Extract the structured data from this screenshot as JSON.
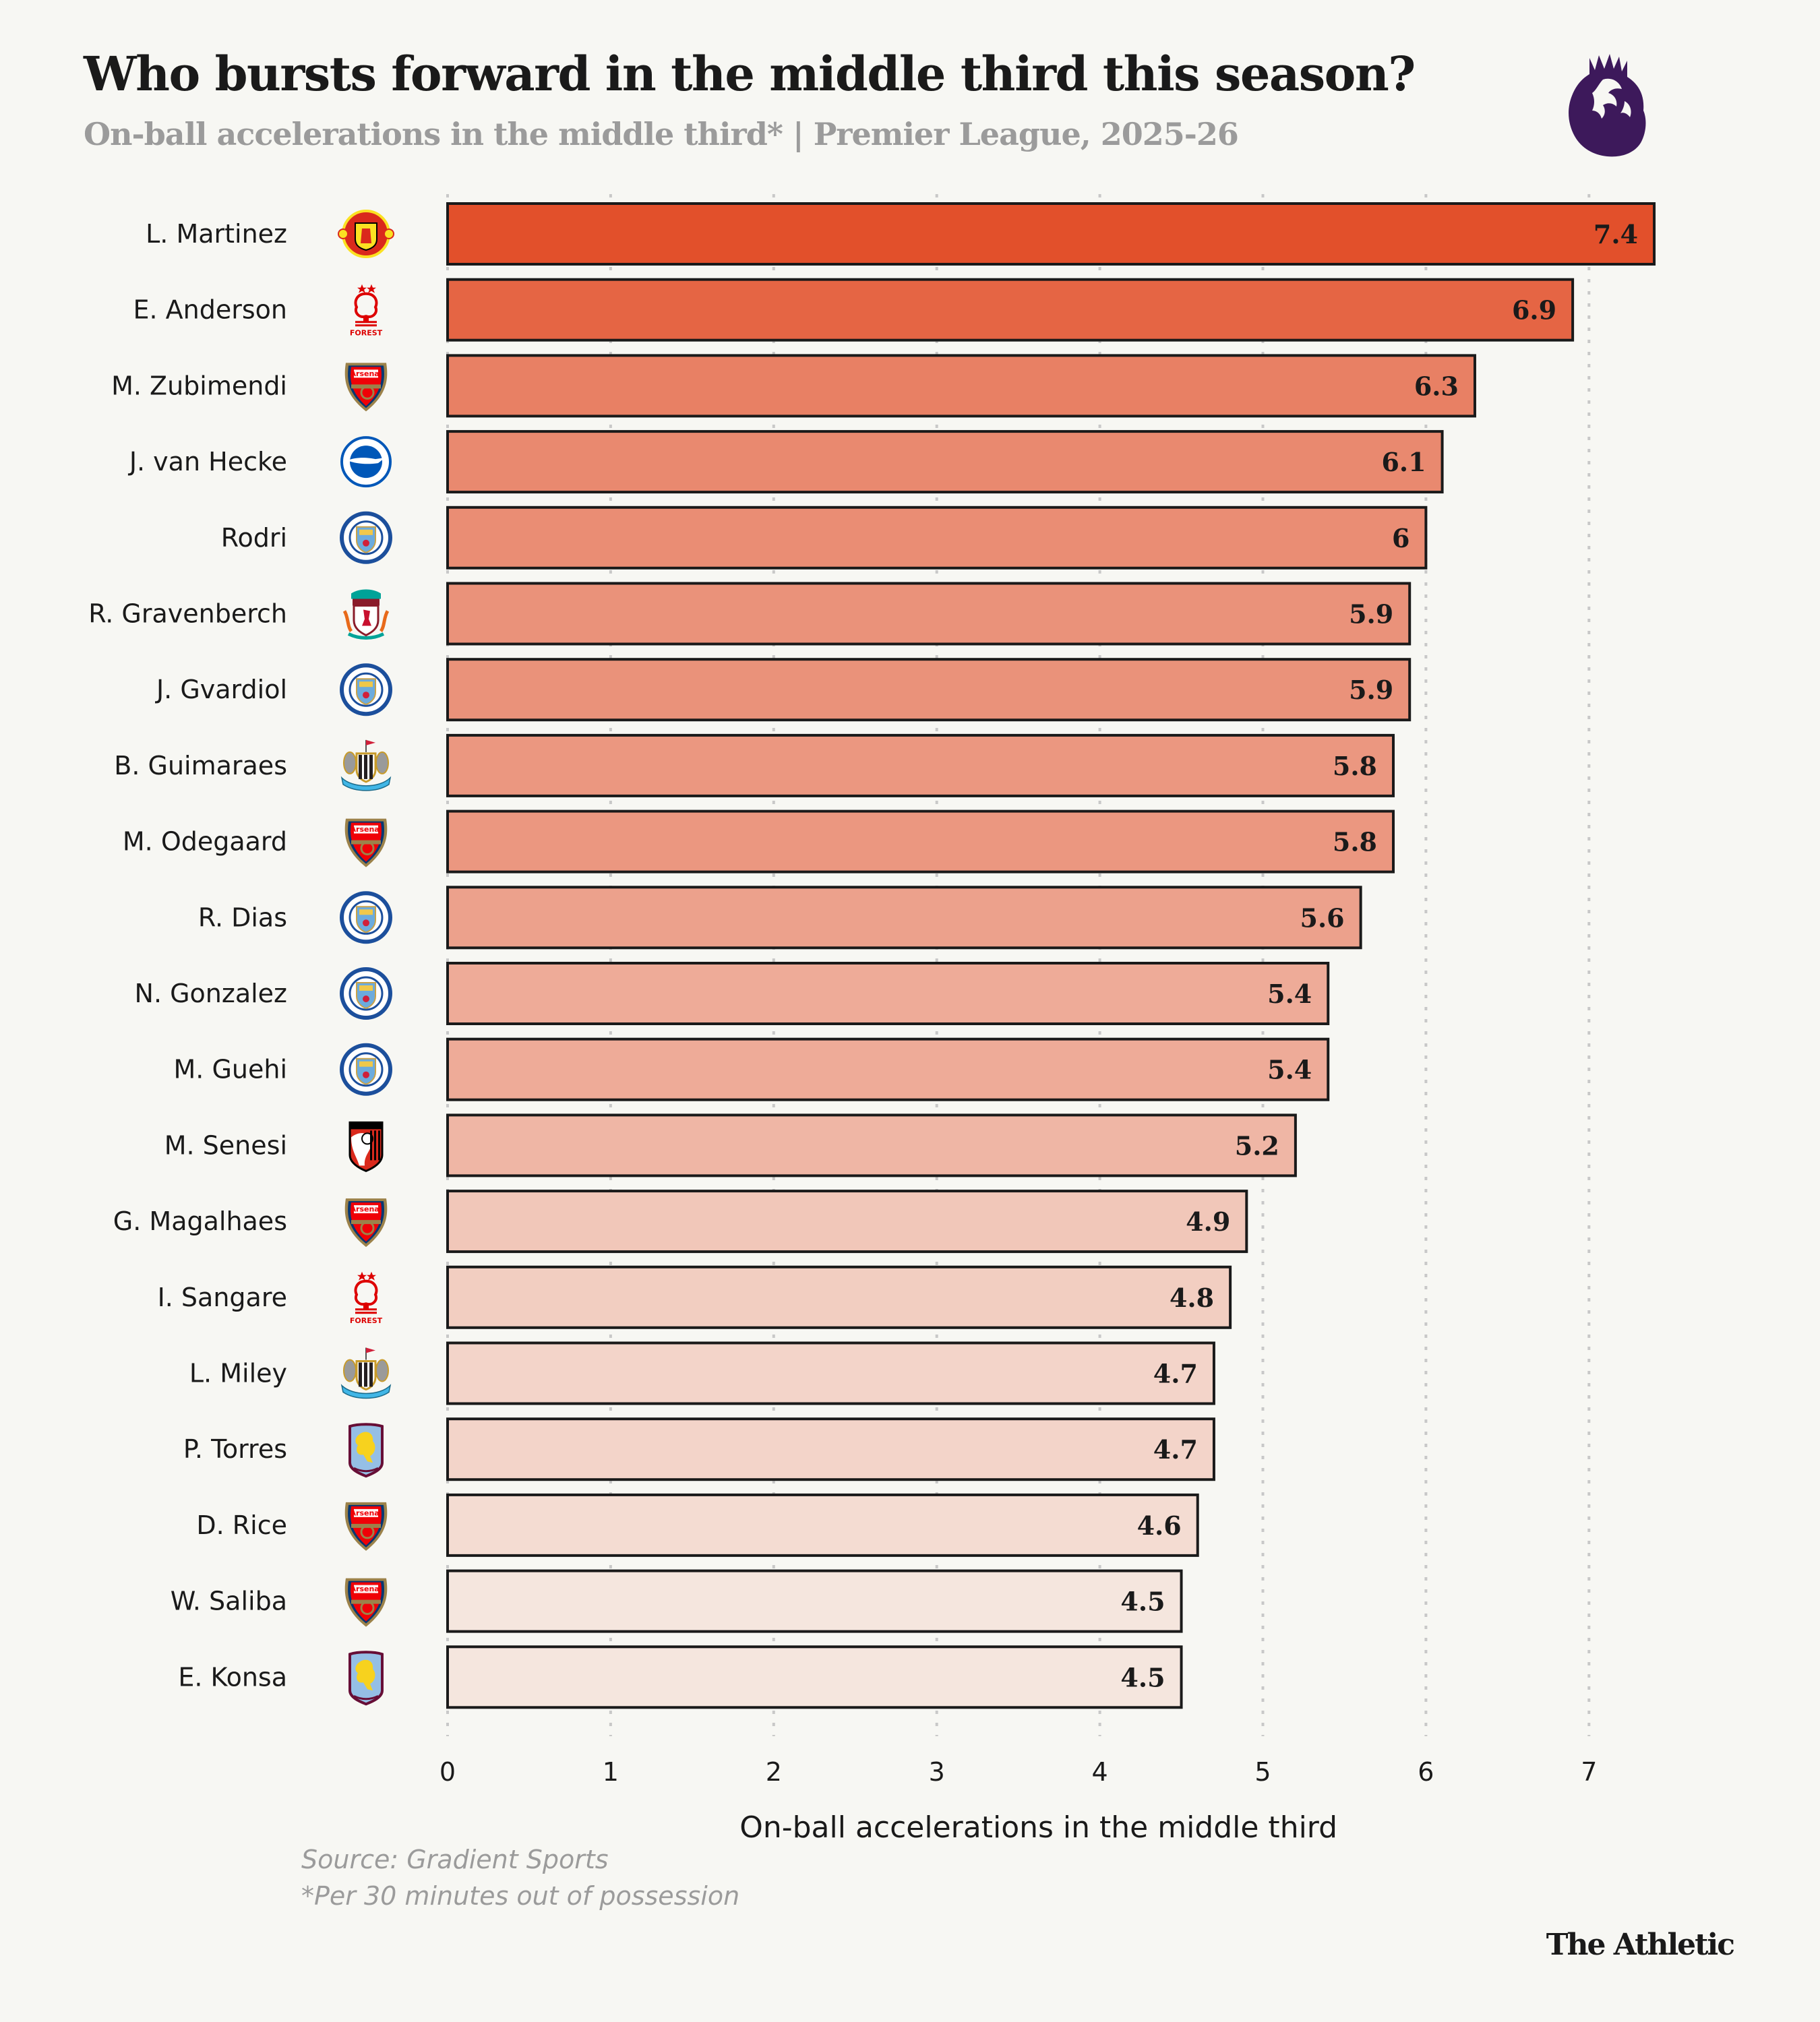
{
  "header": {
    "title": "Who bursts forward in the middle third this season?",
    "subtitle": "On-ball accelerations in the middle third* | Premier League, 2025-26",
    "league_logo": "premier-league-lion-icon"
  },
  "footer": {
    "source": "Source: Gradient Sports",
    "footnote": "*Per 30 minutes out of possession",
    "brand": "The Athletic"
  },
  "colors": {
    "background": "#f7f7f3",
    "bar_max": "#e2502b",
    "bar_min": "#f5e6de",
    "bar_outline": "#1a1a1a",
    "gridline": "#c8c8c8",
    "league_purple": "#3d195b"
  },
  "chart_data": {
    "type": "bar",
    "orientation": "horizontal",
    "title": "Who bursts forward in the middle third this season?",
    "subtitle": "On-ball accelerations in the middle third* | Premier League, 2025-26",
    "xlabel": "On-ball accelerations in the middle third",
    "ylabel": "",
    "xlim": [
      0,
      7.4
    ],
    "xticks": [
      0,
      1,
      2,
      3,
      4,
      5,
      6,
      7
    ],
    "grid": "vertical-dotted",
    "legend": "none",
    "categories": [
      "L. Martinez",
      "E. Anderson",
      "M. Zubimendi",
      "J. van Hecke",
      "Rodri",
      "R. Gravenberch",
      "J. Gvardiol",
      "B. Guimaraes",
      "M. Odegaard",
      "R. Dias",
      "N. Gonzalez",
      "M. Guehi",
      "M. Senesi",
      "G. Magalhaes",
      "I. Sangare",
      "L. Miley",
      "P. Torres",
      "D. Rice",
      "W. Saliba",
      "E. Konsa"
    ],
    "values": [
      7.4,
      6.9,
      6.3,
      6.1,
      6.0,
      5.9,
      5.9,
      5.8,
      5.8,
      5.6,
      5.4,
      5.4,
      5.2,
      4.9,
      4.8,
      4.7,
      4.7,
      4.6,
      4.5,
      4.5
    ],
    "value_labels": [
      "7.4",
      "6.9",
      "6.3",
      "6.1",
      "6",
      "5.9",
      "5.9",
      "5.8",
      "5.8",
      "5.6",
      "5.4",
      "5.4",
      "5.2",
      "4.9",
      "4.8",
      "4.7",
      "4.7",
      "4.6",
      "4.5",
      "4.5"
    ],
    "clubs": [
      "man-utd",
      "nottm-forest",
      "arsenal",
      "brighton",
      "man-city",
      "liverpool",
      "man-city",
      "newcastle",
      "arsenal",
      "man-city",
      "man-city",
      "man-city",
      "bournemouth",
      "arsenal",
      "nottm-forest",
      "newcastle",
      "aston-villa",
      "arsenal",
      "arsenal",
      "aston-villa"
    ]
  },
  "crests": {
    "man-utd": {
      "name": "man-utd-crest-icon",
      "primary": "#da291c",
      "secondary": "#fbe122",
      "text": "MU"
    },
    "nottm-forest": {
      "name": "nottm-forest-crest-icon",
      "primary": "#dd0000",
      "secondary": "#ffffff",
      "text": "FOREST"
    },
    "arsenal": {
      "name": "arsenal-crest-icon",
      "primary": "#ef0107",
      "secondary": "#9c824a",
      "text": "Arsenal"
    },
    "brighton": {
      "name": "brighton-crest-icon",
      "primary": "#0057b8",
      "secondary": "#ffffff",
      "text": ""
    },
    "man-city": {
      "name": "man-city-crest-icon",
      "primary": "#1c4f9c",
      "secondary": "#6cabdd",
      "text": "CITY"
    },
    "liverpool": {
      "name": "liverpool-crest-icon",
      "primary": "#c8102e",
      "secondary": "#00a398",
      "text": "LFC"
    },
    "newcastle": {
      "name": "newcastle-crest-icon",
      "primary": "#241f20",
      "secondary": "#41b6e6",
      "text": ""
    },
    "bournemouth": {
      "name": "bournemouth-crest-icon",
      "primary": "#da291c",
      "secondary": "#000000",
      "text": ""
    },
    "aston-villa": {
      "name": "aston-villa-crest-icon",
      "primary": "#95bfe5",
      "secondary": "#670e36",
      "text": ""
    }
  }
}
